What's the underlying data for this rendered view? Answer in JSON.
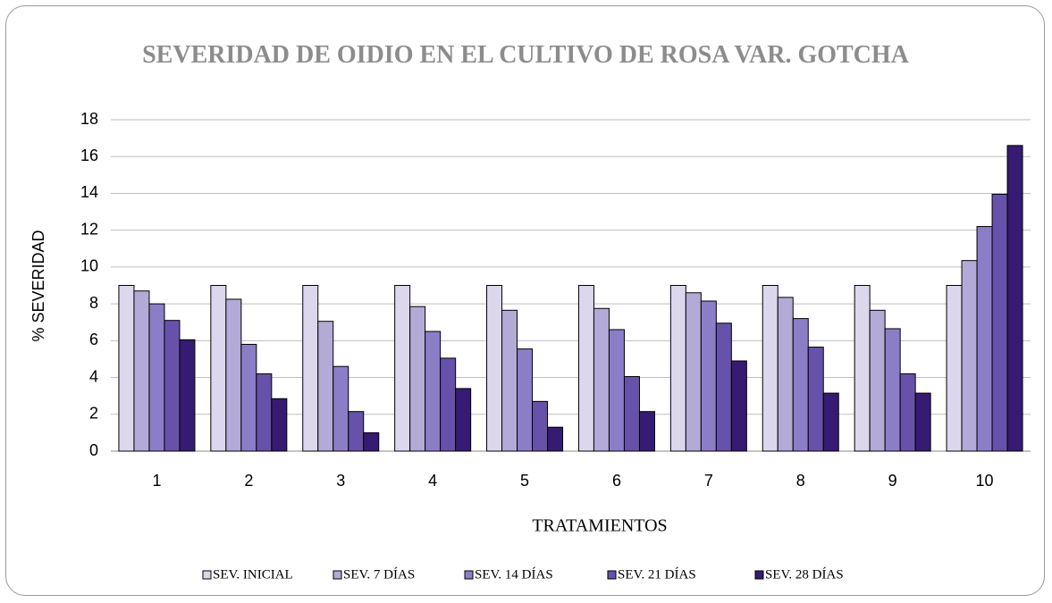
{
  "chart_data": {
    "type": "bar",
    "title": "SEVERIDAD DE OIDIO EN EL CULTIVO DE ROSA VAR. GOTCHA",
    "x_label": "TRATAMIENTOS",
    "y_label": "% SEVERIDAD",
    "categories": [
      "1",
      "2",
      "3",
      "4",
      "5",
      "6",
      "7",
      "8",
      "9",
      "10"
    ],
    "series": [
      {
        "name": "SEV. INICIAL",
        "color": "#dcd7ec",
        "values": [
          9,
          9,
          9,
          9,
          9,
          9,
          9,
          9,
          9,
          9
        ]
      },
      {
        "name": "SEV. 7 DÍAS",
        "color": "#b4aad6",
        "values": [
          8.7,
          8.25,
          7.05,
          7.85,
          7.65,
          7.75,
          8.6,
          8.35,
          7.65,
          10.35
        ]
      },
      {
        "name": "SEV. 14 DÍAS",
        "color": "#8b7ec7",
        "values": [
          8,
          5.8,
          4.6,
          6.5,
          5.55,
          6.6,
          8.15,
          7.2,
          6.65,
          12.2
        ]
      },
      {
        "name": "SEV. 21 DÍAS",
        "color": "#6652aa",
        "values": [
          7.1,
          4.2,
          2.15,
          5.05,
          2.7,
          4.05,
          6.95,
          5.65,
          4.2,
          13.95
        ]
      },
      {
        "name": "SEV. 28 DÍAS",
        "color": "#361b72",
        "values": [
          6.05,
          2.85,
          1,
          3.4,
          1.3,
          2.15,
          4.9,
          3.15,
          3.15,
          16.6
        ]
      }
    ],
    "ylim": [
      0,
      18
    ],
    "yticks": [
      0,
      2,
      4,
      6,
      8,
      10,
      12,
      14,
      16,
      18
    ],
    "grid": true,
    "legend": "bottom"
  }
}
